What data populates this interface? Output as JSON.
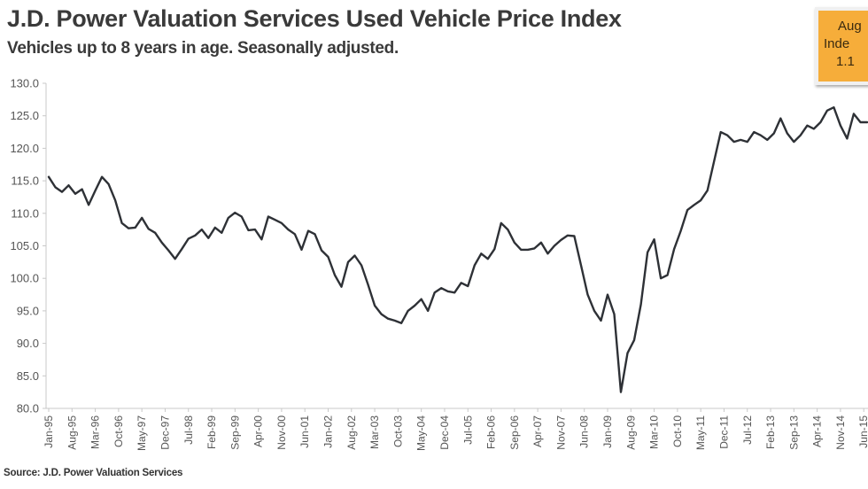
{
  "header": {
    "title": "J.D. Power Valuation Services Used Vehicle Price Index",
    "subtitle": "Vehicles up to 8 years in age. Seasonally adjusted."
  },
  "callout": {
    "lines": [
      "Aug",
      "Inde",
      "1.1"
    ],
    "color": "#f6ad3a"
  },
  "footer": {
    "source": "Source: J.D. Power Valuation Services"
  },
  "chart_data": {
    "type": "line",
    "title": "J.D. Power Valuation Services Used Vehicle Price Index",
    "subtitle": "Vehicles up to 8 years in age. Seasonally adjusted.",
    "xlabel": "",
    "ylabel": "",
    "ylim": [
      80,
      130
    ],
    "yticks": [
      "130.0",
      "125.0",
      "120.0",
      "115.0",
      "110.0",
      "105.0",
      "100.0",
      "95.0",
      "90.0",
      "85.0",
      "80.0"
    ],
    "ytick_values": [
      130,
      125,
      120,
      115,
      110,
      105,
      100,
      95,
      90,
      85,
      80
    ],
    "xtick_labels": [
      "Jan-95",
      "Aug-95",
      "Mar-96",
      "Oct-96",
      "May-97",
      "Dec-97",
      "Jul-98",
      "Feb-99",
      "Sep-99",
      "Apr-00",
      "Nov-00",
      "Jun-01",
      "Jan-02",
      "Aug-02",
      "Mar-03",
      "Oct-03",
      "May-04",
      "Dec-04",
      "Jul-05",
      "Feb-06",
      "Sep-06",
      "Apr-07",
      "Nov-07",
      "Jun-08",
      "Jan-09",
      "Aug-09",
      "Mar-10",
      "Oct-10",
      "May-11",
      "Dec-11",
      "Jul-12",
      "Feb-13",
      "Sep-13",
      "Apr-14",
      "Nov-14",
      "Jun-15"
    ],
    "grid": false,
    "line_color": "#2e3136",
    "series": [
      {
        "name": "Used Vehicle Price Index",
        "x_months_since_jan95": [
          0,
          2,
          4,
          6,
          8,
          10,
          12,
          14,
          16,
          18,
          20,
          22,
          24,
          26,
          28,
          30,
          32,
          34,
          36,
          38,
          40,
          42,
          44,
          46,
          48,
          50,
          52,
          54,
          56,
          58,
          60,
          62,
          64,
          66,
          68,
          70,
          72,
          74,
          76,
          78,
          80,
          82,
          84,
          86,
          88,
          90,
          92,
          94,
          96,
          98,
          100,
          102,
          104,
          106,
          108,
          110,
          112,
          114,
          116,
          118,
          120,
          122,
          124,
          126,
          128,
          130,
          132,
          134,
          136,
          138,
          140,
          142,
          144,
          146,
          148,
          150,
          152,
          154,
          156,
          158,
          160,
          162,
          164,
          166,
          168,
          170,
          172,
          174,
          176,
          178,
          180,
          182,
          184,
          186,
          188,
          190,
          192,
          194,
          196,
          198,
          200,
          202,
          204,
          206,
          208,
          210,
          212,
          214,
          216,
          218,
          220,
          222,
          224,
          226,
          228,
          230,
          232,
          234,
          236,
          238,
          240,
          242,
          244,
          246,
          248,
          250
        ],
        "values": [
          115.6,
          114.0,
          113.3,
          114.3,
          113.0,
          113.7,
          111.3,
          113.5,
          115.6,
          114.5,
          112.0,
          108.5,
          107.7,
          107.8,
          109.3,
          107.6,
          107.0,
          105.5,
          104.3,
          103.0,
          104.5,
          106.1,
          106.6,
          107.5,
          106.2,
          107.8,
          107.0,
          109.3,
          110.1,
          109.5,
          107.4,
          107.5,
          106.0,
          109.5,
          109.0,
          108.5,
          107.5,
          106.8,
          104.4,
          107.3,
          106.8,
          104.3,
          103.3,
          100.5,
          98.7,
          102.5,
          103.5,
          102.0,
          99.0,
          95.8,
          94.5,
          93.8,
          93.5,
          93.1,
          95.0,
          95.8,
          96.8,
          95.0,
          97.8,
          98.5,
          98.0,
          97.8,
          99.3,
          98.8,
          102.0,
          103.8,
          103.0,
          104.5,
          108.5,
          107.5,
          105.5,
          104.4,
          104.4,
          104.6,
          105.5,
          103.8,
          105.0,
          105.9,
          106.6,
          106.5,
          102.0,
          97.5,
          95.0,
          93.5,
          97.5,
          94.5,
          82.5,
          88.5,
          90.5,
          96.0,
          104.0,
          106.0,
          100.0,
          100.5,
          104.5,
          107.3,
          110.5,
          111.3,
          112.0,
          113.5,
          118.0,
          122.5,
          122.0,
          121.0,
          121.3,
          121.0,
          122.5,
          122.0,
          121.3,
          122.3,
          124.6,
          122.3,
          121.0,
          122.0,
          123.5,
          123.0,
          124.0,
          125.8,
          126.3,
          123.5,
          121.5,
          125.3,
          124.0,
          124.0
        ]
      }
    ]
  }
}
